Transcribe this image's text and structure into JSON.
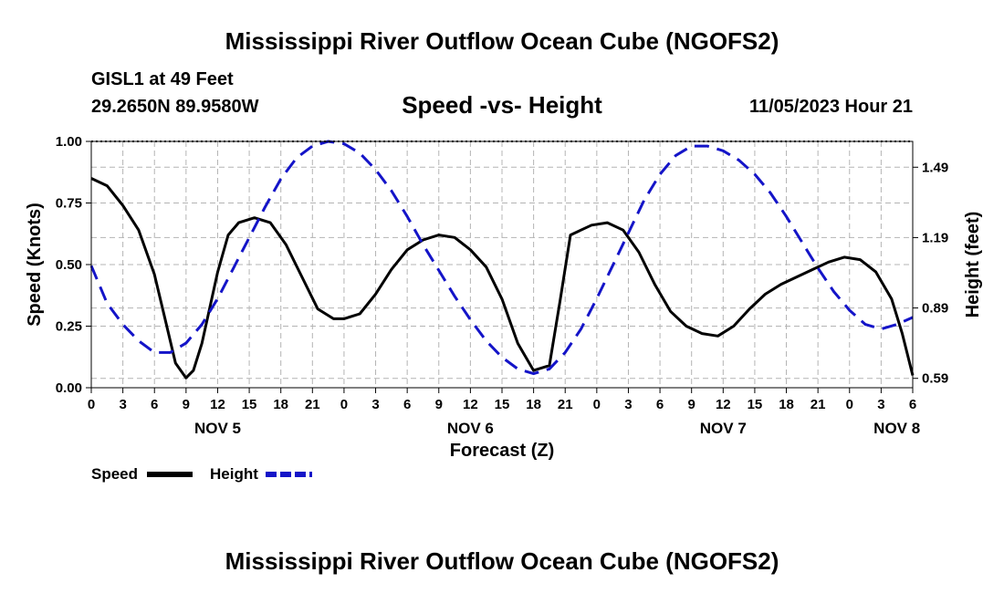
{
  "header": {
    "title": "Mississippi River Outflow Ocean Cube (NGOFS2)",
    "station": "GISL1 at 49 Feet",
    "coordinates": "29.2650N  89.9580W",
    "subtitle": "Speed -vs- Height",
    "datetime": "11/05/2023 Hour 21"
  },
  "footer": {
    "title": "Mississippi River Outflow Ocean Cube (NGOFS2)"
  },
  "chart_data": {
    "type": "line",
    "xlabel": "Forecast (Z)",
    "ylabel": "Speed (Knots)",
    "y2label": "Height (feet)",
    "xlim": [
      0,
      78
    ],
    "ylim": [
      0,
      1.0
    ],
    "y2lim": [
      0.55,
      1.6
    ],
    "grid": true,
    "x_ticks": [
      0,
      3,
      6,
      9,
      12,
      15,
      18,
      21,
      24,
      27,
      30,
      33,
      36,
      39,
      42,
      45,
      48,
      51,
      54,
      57,
      60,
      63,
      66,
      69,
      72,
      75,
      78
    ],
    "x_tick_labels": [
      "0",
      "3",
      "6",
      "9",
      "12",
      "15",
      "18",
      "21",
      "0",
      "3",
      "6",
      "9",
      "12",
      "15",
      "18",
      "21",
      "0",
      "3",
      "6",
      "9",
      "12",
      "15",
      "18",
      "21",
      "0",
      "3",
      "6"
    ],
    "date_labels": [
      {
        "x": 12,
        "label": "NOV 5"
      },
      {
        "x": 36,
        "label": "NOV 6"
      },
      {
        "x": 60,
        "label": "NOV 7"
      },
      {
        "x": 76.5,
        "label": "NOV 8"
      }
    ],
    "y_ticks": [
      0,
      0.25,
      0.5,
      0.75,
      1.0
    ],
    "y_tick_labels": [
      "0.00",
      "0.25",
      "0.50",
      "0.75",
      "1.00"
    ],
    "y2_ticks": [
      0.59,
      0.89,
      1.19,
      1.49
    ],
    "y2_tick_labels": [
      "0.59",
      "0.89",
      "1.19",
      "1.49"
    ],
    "legend": [
      {
        "name": "Speed",
        "color": "#000000",
        "dash": false
      },
      {
        "name": "Height",
        "color": "#1414c8",
        "dash": true
      }
    ],
    "series": [
      {
        "name": "Speed",
        "axis": "left",
        "color": "#000000",
        "x": [
          0,
          1.5,
          3,
          4.5,
          6,
          7,
          8,
          9,
          9.7,
          10.5,
          12,
          13,
          14,
          15.5,
          17,
          18.5,
          20,
          21.5,
          23,
          24,
          25.5,
          27,
          28.5,
          30,
          31.5,
          33,
          34.5,
          36,
          37.5,
          39,
          40.5,
          42,
          43.5,
          44.5,
          45.5,
          46.5,
          47.5,
          49,
          50.5,
          52,
          53.5,
          55,
          56.5,
          58,
          59.5,
          61,
          62.5,
          64,
          65.5,
          67,
          68.5,
          70,
          71.5,
          73,
          74.5,
          76,
          77,
          78
        ],
        "values": [
          0.85,
          0.82,
          0.74,
          0.64,
          0.46,
          0.28,
          0.1,
          0.04,
          0.07,
          0.18,
          0.47,
          0.62,
          0.67,
          0.69,
          0.67,
          0.58,
          0.45,
          0.32,
          0.28,
          0.28,
          0.3,
          0.38,
          0.48,
          0.56,
          0.6,
          0.62,
          0.61,
          0.56,
          0.49,
          0.36,
          0.18,
          0.07,
          0.09,
          0.35,
          0.62,
          0.64,
          0.66,
          0.67,
          0.64,
          0.55,
          0.42,
          0.31,
          0.25,
          0.22,
          0.21,
          0.25,
          0.32,
          0.38,
          0.42,
          0.45,
          0.48,
          0.51,
          0.53,
          0.52,
          0.47,
          0.36,
          0.22,
          0.05
        ]
      },
      {
        "name": "Height",
        "axis": "right",
        "color": "#1414c8",
        "x": [
          0,
          1.5,
          3,
          4.5,
          6,
          7.5,
          9,
          10.5,
          12,
          13.5,
          15,
          16.5,
          18,
          19.5,
          21,
          22.5,
          24,
          25.5,
          27,
          28.5,
          30,
          31.5,
          33,
          34.5,
          36,
          37.5,
          39,
          40.5,
          42,
          43.5,
          45,
          46.5,
          48,
          49.5,
          51,
          52.5,
          54,
          55.5,
          57,
          58.5,
          60,
          61.5,
          63,
          64.5,
          66,
          67.5,
          69,
          70.5,
          72,
          73.5,
          75,
          76.5,
          78
        ],
        "values": [
          1.07,
          0.91,
          0.82,
          0.75,
          0.7,
          0.7,
          0.74,
          0.82,
          0.93,
          1.06,
          1.19,
          1.32,
          1.44,
          1.53,
          1.58,
          1.6,
          1.59,
          1.55,
          1.48,
          1.39,
          1.28,
          1.16,
          1.05,
          0.94,
          0.84,
          0.75,
          0.68,
          0.63,
          0.61,
          0.63,
          0.7,
          0.8,
          0.93,
          1.07,
          1.21,
          1.35,
          1.46,
          1.54,
          1.58,
          1.58,
          1.56,
          1.52,
          1.46,
          1.38,
          1.28,
          1.17,
          1.06,
          0.96,
          0.88,
          0.82,
          0.8,
          0.82,
          0.85
        ]
      }
    ]
  }
}
